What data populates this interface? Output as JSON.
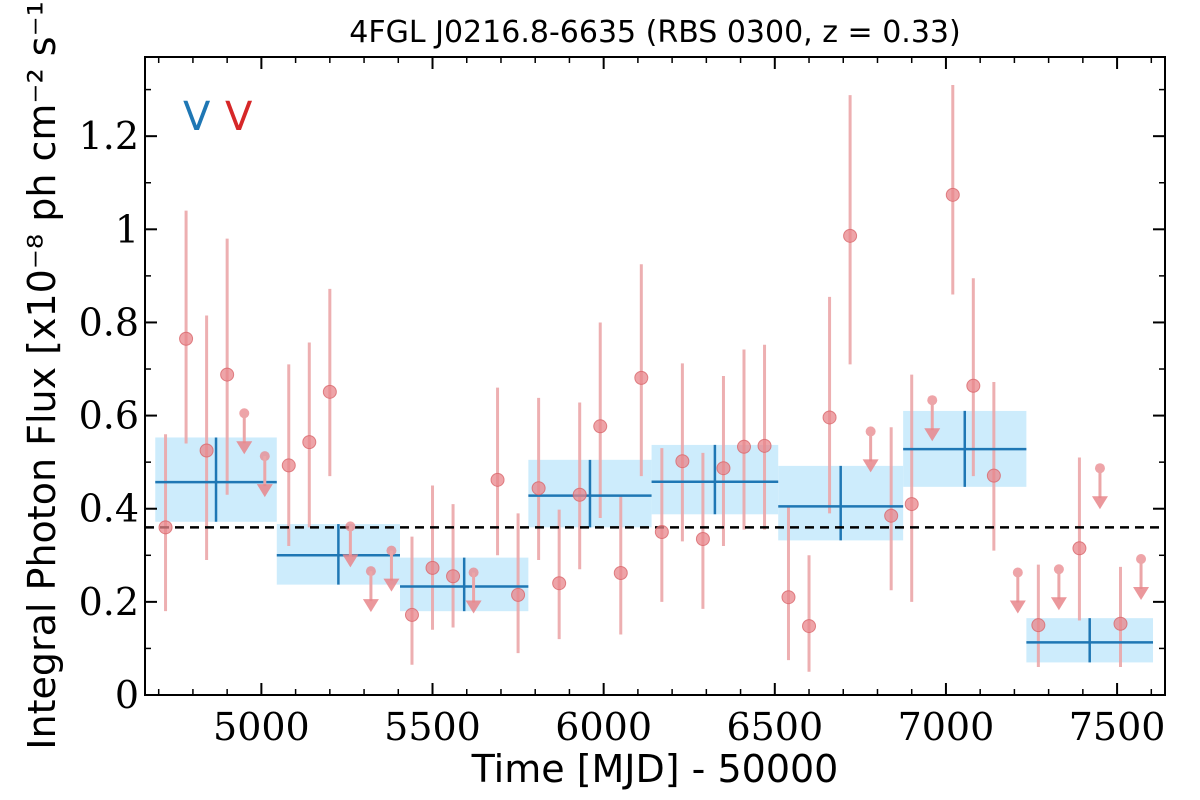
{
  "chart_data": {
    "type": "scatter",
    "title": "4FGL J0216.8-6635 (RBS 0300, z = 0.33)",
    "xlabel": "Time [MJD] - 50000",
    "ylabel": "Integral Photon Flux [x10⁻⁸ ph cm⁻² s⁻¹]",
    "xlim": [
      4660,
      7640
    ],
    "ylim": [
      0,
      1.37
    ],
    "xticks": [
      5000,
      5500,
      6000,
      6500,
      7000,
      7500
    ],
    "xtick_labels": [
      "5000",
      "5500",
      "6000",
      "6500",
      "7000",
      "7500"
    ],
    "yticks": [
      0,
      0.2,
      0.4,
      0.6,
      0.8,
      1.0,
      1.2
    ],
    "ytick_labels": [
      "0",
      "0.2",
      "0.4",
      "0.6",
      "0.8",
      "1",
      "1.2"
    ],
    "mean_flux": 0.36,
    "variability_flags": [
      {
        "text": "V",
        "color": "#1f77b4"
      },
      {
        "text": "V",
        "color": "#d62728"
      }
    ],
    "short_bins": [
      {
        "t": 4720,
        "flux": 0.36,
        "lo": 0.18,
        "hi": 0.56
      },
      {
        "t": 4780,
        "flux": 0.765,
        "lo": 0.54,
        "hi": 1.04
      },
      {
        "t": 4840,
        "flux": 0.525,
        "lo": 0.29,
        "hi": 0.815
      },
      {
        "t": 4900,
        "flux": 0.688,
        "lo": 0.43,
        "hi": 0.98
      },
      {
        "t": 5080,
        "flux": 0.493,
        "lo": 0.32,
        "hi": 0.71
      },
      {
        "t": 5140,
        "flux": 0.543,
        "lo": 0.36,
        "hi": 0.757
      },
      {
        "t": 5200,
        "flux": 0.651,
        "lo": 0.47,
        "hi": 0.872
      },
      {
        "t": 5440,
        "flux": 0.172,
        "lo": 0.065,
        "hi": 0.34
      },
      {
        "t": 5500,
        "flux": 0.273,
        "lo": 0.14,
        "hi": 0.45
      },
      {
        "t": 5560,
        "flux": 0.255,
        "lo": 0.145,
        "hi": 0.41
      },
      {
        "t": 5690,
        "flux": 0.462,
        "lo": 0.3,
        "hi": 0.66
      },
      {
        "t": 5750,
        "flux": 0.215,
        "lo": 0.09,
        "hi": 0.39
      },
      {
        "t": 5810,
        "flux": 0.444,
        "lo": 0.29,
        "hi": 0.638
      },
      {
        "t": 5870,
        "flux": 0.24,
        "lo": 0.12,
        "hi": 0.398
      },
      {
        "t": 5930,
        "flux": 0.43,
        "lo": 0.27,
        "hi": 0.628
      },
      {
        "t": 5990,
        "flux": 0.577,
        "lo": 0.38,
        "hi": 0.8
      },
      {
        "t": 6050,
        "flux": 0.262,
        "lo": 0.13,
        "hi": 0.43
      },
      {
        "t": 6110,
        "flux": 0.681,
        "lo": 0.47,
        "hi": 0.925
      },
      {
        "t": 6170,
        "flux": 0.35,
        "lo": 0.2,
        "hi": 0.53
      },
      {
        "t": 6230,
        "flux": 0.502,
        "lo": 0.33,
        "hi": 0.712
      },
      {
        "t": 6290,
        "flux": 0.335,
        "lo": 0.185,
        "hi": 0.52
      },
      {
        "t": 6350,
        "flux": 0.487,
        "lo": 0.32,
        "hi": 0.685
      },
      {
        "t": 6410,
        "flux": 0.533,
        "lo": 0.355,
        "hi": 0.742
      },
      {
        "t": 6470,
        "flux": 0.535,
        "lo": 0.355,
        "hi": 0.752
      },
      {
        "t": 6540,
        "flux": 0.21,
        "lo": 0.075,
        "hi": 0.405
      },
      {
        "t": 6600,
        "flux": 0.148,
        "lo": 0.05,
        "hi": 0.3
      },
      {
        "t": 6660,
        "flux": 0.596,
        "lo": 0.39,
        "hi": 0.855
      },
      {
        "t": 6720,
        "flux": 0.986,
        "lo": 0.71,
        "hi": 1.288
      },
      {
        "t": 6840,
        "flux": 0.385,
        "lo": 0.225,
        "hi": 0.575
      },
      {
        "t": 6900,
        "flux": 0.41,
        "lo": 0.2,
        "hi": 0.688
      },
      {
        "t": 7020,
        "flux": 1.074,
        "lo": 0.86,
        "hi": 1.31
      },
      {
        "t": 7080,
        "flux": 0.664,
        "lo": 0.47,
        "hi": 0.895
      },
      {
        "t": 7140,
        "flux": 0.471,
        "lo": 0.31,
        "hi": 0.672
      },
      {
        "t": 7270,
        "flux": 0.15,
        "lo": 0.06,
        "hi": 0.28
      },
      {
        "t": 7390,
        "flux": 0.315,
        "lo": 0.16,
        "hi": 0.51
      },
      {
        "t": 7510,
        "flux": 0.153,
        "lo": 0.06,
        "hi": 0.275
      }
    ],
    "short_upper_limits": [
      {
        "t": 4950,
        "flux": 0.605
      },
      {
        "t": 5010,
        "flux": 0.513
      },
      {
        "t": 5260,
        "flux": 0.362
      },
      {
        "t": 5320,
        "flux": 0.266
      },
      {
        "t": 5380,
        "flux": 0.31
      },
      {
        "t": 5620,
        "flux": 0.263
      },
      {
        "t": 6780,
        "flux": 0.566
      },
      {
        "t": 6960,
        "flux": 0.633
      },
      {
        "t": 7210,
        "flux": 0.263
      },
      {
        "t": 7330,
        "flux": 0.27
      },
      {
        "t": 7450,
        "flux": 0.487
      },
      {
        "t": 7570,
        "flux": 0.292
      }
    ],
    "long_bins": [
      {
        "t_start": 4690,
        "t_end": 5045,
        "flux": 0.457,
        "lo": 0.372,
        "hi": 0.553
      },
      {
        "t_start": 5045,
        "t_end": 5405,
        "flux": 0.3,
        "lo": 0.237,
        "hi": 0.367
      },
      {
        "t_start": 5405,
        "t_end": 5780,
        "flux": 0.233,
        "lo": 0.18,
        "hi": 0.295
      },
      {
        "t_start": 5780,
        "t_end": 6140,
        "flux": 0.428,
        "lo": 0.36,
        "hi": 0.505
      },
      {
        "t_start": 6140,
        "t_end": 6510,
        "flux": 0.458,
        "lo": 0.388,
        "hi": 0.537
      },
      {
        "t_start": 6510,
        "t_end": 6875,
        "flux": 0.405,
        "lo": 0.332,
        "hi": 0.492
      },
      {
        "t_start": 6875,
        "t_end": 7235,
        "flux": 0.528,
        "lo": 0.447,
        "hi": 0.61
      },
      {
        "t_start": 7235,
        "t_end": 7605,
        "flux": 0.113,
        "lo": 0.07,
        "hi": 0.165
      }
    ],
    "colors": {
      "short_marker": "#e8868b",
      "short_errorbar": "#eba6a8",
      "long_line": "#1f77b4",
      "long_band": "#cdecfc",
      "mean_line": "#000000"
    }
  }
}
